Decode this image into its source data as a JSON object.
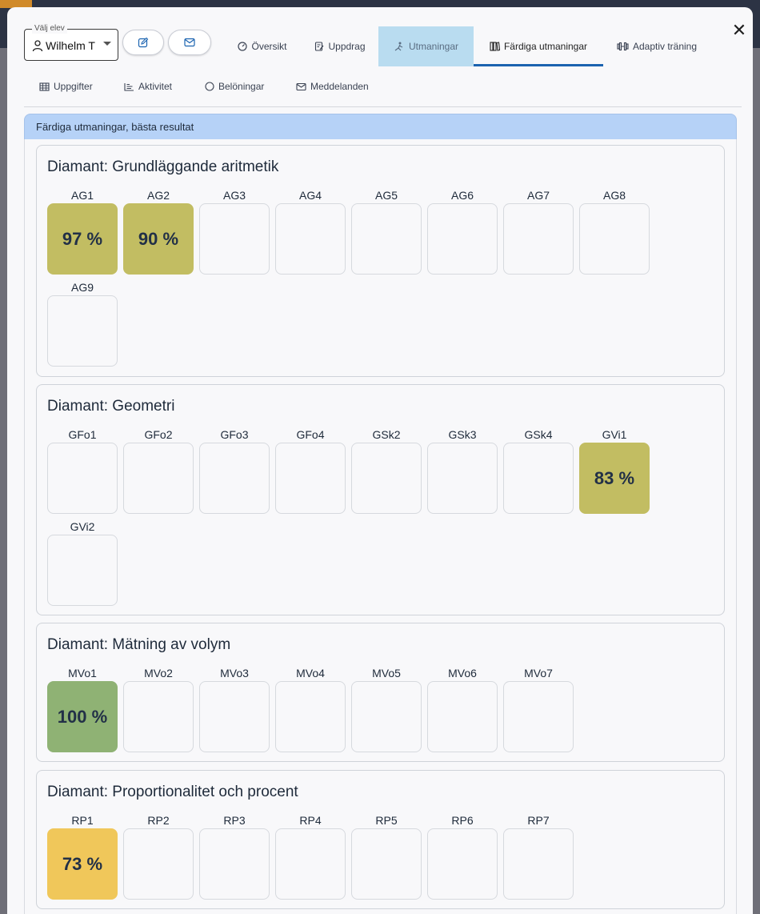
{
  "colors": {
    "accent": "#1b63b0",
    "header_blue": "#b6d2f7",
    "active_tab": "#b9dcf0",
    "olive": "#c2bd62",
    "green": "#8fb274",
    "yellow": "#f0c75a"
  },
  "student_select": {
    "legend": "Välj elev",
    "value": "Wilhelm T"
  },
  "actions": {
    "edit_icon": "edit-icon",
    "mail_icon": "mail-icon"
  },
  "tabs": [
    {
      "label": "Översikt",
      "icon": "dashboard-icon"
    },
    {
      "label": "Uppdrag",
      "icon": "assignment-icon"
    },
    {
      "label": "Utmaningar",
      "icon": "climb-icon"
    },
    {
      "label": "Färdiga utmaningar",
      "icon": "library-icon"
    },
    {
      "label": "Adaptiv träning",
      "icon": "dumbbell-icon"
    }
  ],
  "subtabs": [
    {
      "label": "Uppgifter",
      "icon": "table-icon"
    },
    {
      "label": "Aktivitet",
      "icon": "chart-icon"
    },
    {
      "label": "Belöningar",
      "icon": "circle-icon"
    },
    {
      "label": "Meddelanden",
      "icon": "mail-icon"
    }
  ],
  "panel": {
    "title": "Färdiga utmaningar, bästa resultat"
  },
  "sections": [
    {
      "title": "Diamant: Grundläggande aritmetik",
      "tiles": [
        {
          "label": "AG1",
          "score": "97 %",
          "color": "#c2bd62"
        },
        {
          "label": "AG2",
          "score": "90 %",
          "color": "#c2bd62"
        },
        {
          "label": "AG3",
          "score": "",
          "color": ""
        },
        {
          "label": "AG4",
          "score": "",
          "color": ""
        },
        {
          "label": "AG5",
          "score": "",
          "color": ""
        },
        {
          "label": "AG6",
          "score": "",
          "color": ""
        },
        {
          "label": "AG7",
          "score": "",
          "color": ""
        },
        {
          "label": "AG8",
          "score": "",
          "color": ""
        },
        {
          "label": "AG9",
          "score": "",
          "color": ""
        }
      ]
    },
    {
      "title": "Diamant: Geometri",
      "tiles": [
        {
          "label": "GFo1",
          "score": "",
          "color": ""
        },
        {
          "label": "GFo2",
          "score": "",
          "color": ""
        },
        {
          "label": "GFo3",
          "score": "",
          "color": ""
        },
        {
          "label": "GFo4",
          "score": "",
          "color": ""
        },
        {
          "label": "GSk2",
          "score": "",
          "color": ""
        },
        {
          "label": "GSk3",
          "score": "",
          "color": ""
        },
        {
          "label": "GSk4",
          "score": "",
          "color": ""
        },
        {
          "label": "GVi1",
          "score": "83 %",
          "color": "#c2bd62"
        },
        {
          "label": "GVi2",
          "score": "",
          "color": ""
        }
      ]
    },
    {
      "title": "Diamant: Mätning av volym",
      "tiles": [
        {
          "label": "MVo1",
          "score": "100 %",
          "color": "#8fb274"
        },
        {
          "label": "MVo2",
          "score": "",
          "color": ""
        },
        {
          "label": "MVo3",
          "score": "",
          "color": ""
        },
        {
          "label": "MVo4",
          "score": "",
          "color": ""
        },
        {
          "label": "MVo5",
          "score": "",
          "color": ""
        },
        {
          "label": "MVo6",
          "score": "",
          "color": ""
        },
        {
          "label": "MVo7",
          "score": "",
          "color": ""
        }
      ]
    },
    {
      "title": "Diamant: Proportionalitet och procent",
      "tiles": [
        {
          "label": "RP1",
          "score": "73 %",
          "color": "#f0c75a"
        },
        {
          "label": "RP2",
          "score": "",
          "color": ""
        },
        {
          "label": "RP3",
          "score": "",
          "color": ""
        },
        {
          "label": "RP4",
          "score": "",
          "color": ""
        },
        {
          "label": "RP5",
          "score": "",
          "color": ""
        },
        {
          "label": "RP6",
          "score": "",
          "color": ""
        },
        {
          "label": "RP7",
          "score": "",
          "color": ""
        }
      ]
    }
  ]
}
